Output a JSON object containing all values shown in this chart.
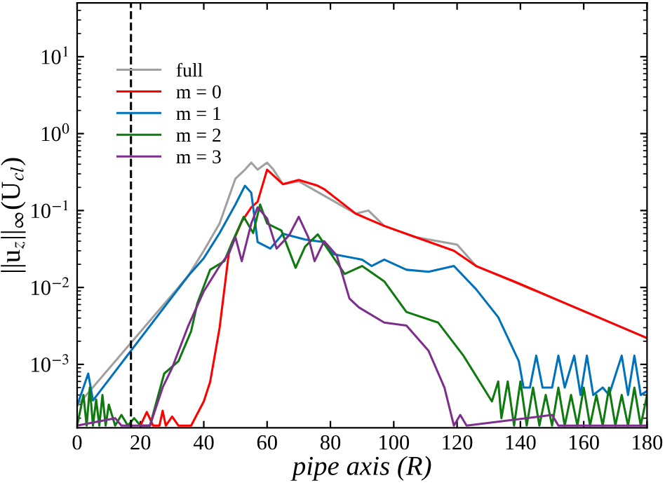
{
  "chart_data": {
    "type": "line",
    "xlabel": "pipe axis (R)",
    "ylabel": "||u$_{z}$||$_{∞}$(U$_{cl}$)",
    "log": "y",
    "grid": false,
    "legend": "top left",
    "marker": "none",
    "line_style": "solid",
    "xlim": [
      0,
      180
    ],
    "xticks": [
      0,
      20,
      40,
      60,
      80,
      100,
      120,
      140,
      160,
      180
    ],
    "ylim": [
      0.00015,
      50
    ],
    "yticks": [
      {
        "value": 0.001,
        "label": "10$^{−3}$"
      },
      {
        "value": 0.01,
        "label": "10$^{−2}$"
      },
      {
        "value": 0.1,
        "label": "10$^{−1}$"
      },
      {
        "value": 1,
        "label": "10$^{0}$"
      },
      {
        "value": 10,
        "label": "10$^{1}$"
      }
    ],
    "ref_lines": [
      {
        "axis": "x",
        "value": 17,
        "color": "#000000",
        "line_style": "dashed"
      }
    ],
    "series": [
      {
        "name": "full",
        "color": "#a0a0a0",
        "x": [
          0,
          35,
          40,
          45,
          50,
          53,
          55,
          57,
          60,
          62,
          65,
          70,
          88,
          92,
          97,
          107,
          120,
          126,
          180
        ],
        "values": [
          0.00029,
          0.014,
          0.03,
          0.068,
          0.26,
          0.34,
          0.42,
          0.34,
          0.42,
          0.34,
          0.22,
          0.24,
          0.091,
          0.1,
          0.063,
          0.045,
          0.036,
          0.019,
          0.0022
        ]
      },
      {
        "name": "m = 0",
        "color": "#ff0000",
        "x": [
          20,
          22,
          24,
          26,
          27,
          28,
          30,
          32,
          34,
          36,
          40,
          42,
          45,
          48,
          52,
          55,
          57,
          60,
          65,
          70,
          76,
          78,
          88,
          97,
          107,
          119,
          126,
          138,
          180
        ],
        "values": [
          0.00016,
          0.00024,
          0.00016,
          0.00016,
          0.00025,
          0.00016,
          0.00021,
          0.00016,
          0.00016,
          0.00016,
          0.00033,
          0.00059,
          0.003,
          0.03,
          0.072,
          0.11,
          0.13,
          0.34,
          0.22,
          0.25,
          0.21,
          0.19,
          0.091,
          0.063,
          0.045,
          0.03,
          0.019,
          0.012,
          0.0022
        ]
      },
      {
        "name": "m = 1",
        "color": "#0072bd",
        "x": [
          0,
          3.5,
          5,
          35,
          40,
          45,
          50,
          53,
          55,
          57,
          61,
          65,
          72,
          77.6,
          81,
          90,
          93,
          97,
          104,
          111,
          119,
          126,
          133,
          139.5,
          141,
          143,
          145,
          147,
          150,
          152,
          154,
          157,
          159,
          161,
          163,
          166,
          168,
          172,
          174,
          176,
          178,
          180
        ],
        "values": [
          0.00029,
          0.00076,
          0.00034,
          0.014,
          0.024,
          0.051,
          0.12,
          0.21,
          0.17,
          0.039,
          0.032,
          0.05,
          0.042,
          0.039,
          0.027,
          0.023,
          0.019,
          0.023,
          0.017,
          0.016,
          0.019,
          0.0095,
          0.0041,
          0.0011,
          0.0005,
          0.0005,
          0.0013,
          0.0005,
          0.0005,
          0.0013,
          0.0005,
          0.0013,
          0.0004,
          0.0013,
          0.0004,
          0.0005,
          0.0004,
          0.0013,
          0.0004,
          0.0013,
          0.0004,
          0.00045
        ]
      },
      {
        "name": "m = 2",
        "color": "#0f7a0f",
        "x": [
          0,
          2,
          3,
          4,
          5,
          6,
          7,
          8,
          9,
          10,
          12,
          14,
          16,
          18,
          20,
          23,
          27.5,
          32,
          36,
          38,
          42,
          46.5,
          49,
          52.6,
          55.6,
          57.8,
          60,
          64.5,
          69,
          72,
          76,
          84.5,
          90,
          97,
          104,
          114,
          122,
          131,
          133,
          134,
          136,
          138,
          140,
          142,
          144,
          146,
          148,
          150,
          152,
          154,
          156,
          158,
          160,
          162,
          164,
          166,
          168,
          170,
          172,
          174,
          176,
          178,
          180
        ],
        "values": [
          0.00016,
          0.0004,
          0.00016,
          0.0005,
          0.00016,
          0.00035,
          0.00016,
          0.0004,
          0.00016,
          0.0003,
          0.00016,
          0.00022,
          0.00016,
          0.0002,
          0.00016,
          0.00016,
          0.00076,
          0.0011,
          0.0027,
          0.0063,
          0.017,
          0.022,
          0.039,
          0.083,
          0.051,
          0.12,
          0.068,
          0.055,
          0.018,
          0.034,
          0.049,
          0.015,
          0.019,
          0.012,
          0.0048,
          0.0035,
          0.0013,
          0.00033,
          0.0006,
          0.0002,
          0.0006,
          0.00016,
          0.0006,
          0.00016,
          0.0005,
          0.00016,
          0.0004,
          0.00016,
          0.0005,
          0.00016,
          0.0004,
          0.00016,
          0.0005,
          0.00016,
          0.0004,
          0.00016,
          0.0005,
          0.00016,
          0.0004,
          0.00016,
          0.0005,
          0.00016,
          0.0004
        ]
      },
      {
        "name": "m = 3",
        "color": "#7e2f8e",
        "x": [
          0,
          12,
          14,
          23,
          27,
          30,
          35,
          40,
          45,
          48,
          50,
          52,
          55,
          57,
          60,
          63,
          67,
          70,
          73,
          75,
          78,
          82,
          86,
          89,
          97,
          104,
          111,
          116,
          119,
          121,
          123,
          150,
          152,
          180
        ],
        "values": [
          0.00016,
          0.0002,
          0.00016,
          0.00016,
          0.0005,
          0.0009,
          0.0031,
          0.0089,
          0.019,
          0.028,
          0.045,
          0.022,
          0.068,
          0.11,
          0.079,
          0.032,
          0.048,
          0.083,
          0.045,
          0.022,
          0.04,
          0.026,
          0.0072,
          0.0055,
          0.0035,
          0.0032,
          0.0015,
          0.0005,
          0.00016,
          0.00022,
          0.00016,
          0.00022,
          0.00016,
          0.00016
        ]
      }
    ]
  }
}
